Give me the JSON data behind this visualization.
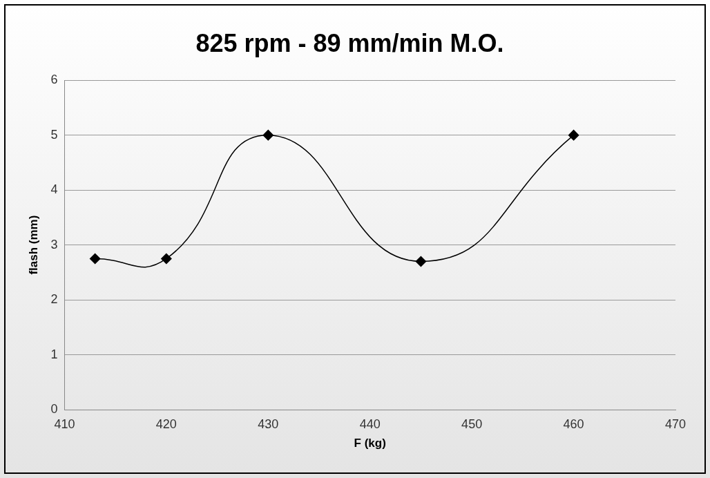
{
  "chart_data": {
    "type": "line",
    "title": "825 rpm - 89 mm/min M.O.",
    "xlabel": "F (kg)",
    "ylabel": "flash (mm)",
    "x": [
      413,
      420,
      430,
      445,
      460
    ],
    "series": [
      {
        "color": "#000000",
        "values": [
          2.75,
          2.75,
          5,
          2.7,
          5
        ]
      }
    ],
    "xlim": [
      410,
      470
    ],
    "xticks": [
      410,
      420,
      430,
      440,
      450,
      460,
      470
    ],
    "ylim": [
      0,
      6
    ],
    "yticks": [
      0,
      1,
      2,
      3,
      4,
      5,
      6
    ],
    "grid": "y",
    "legend": false,
    "marker": "diamond",
    "line_style": "solid"
  }
}
